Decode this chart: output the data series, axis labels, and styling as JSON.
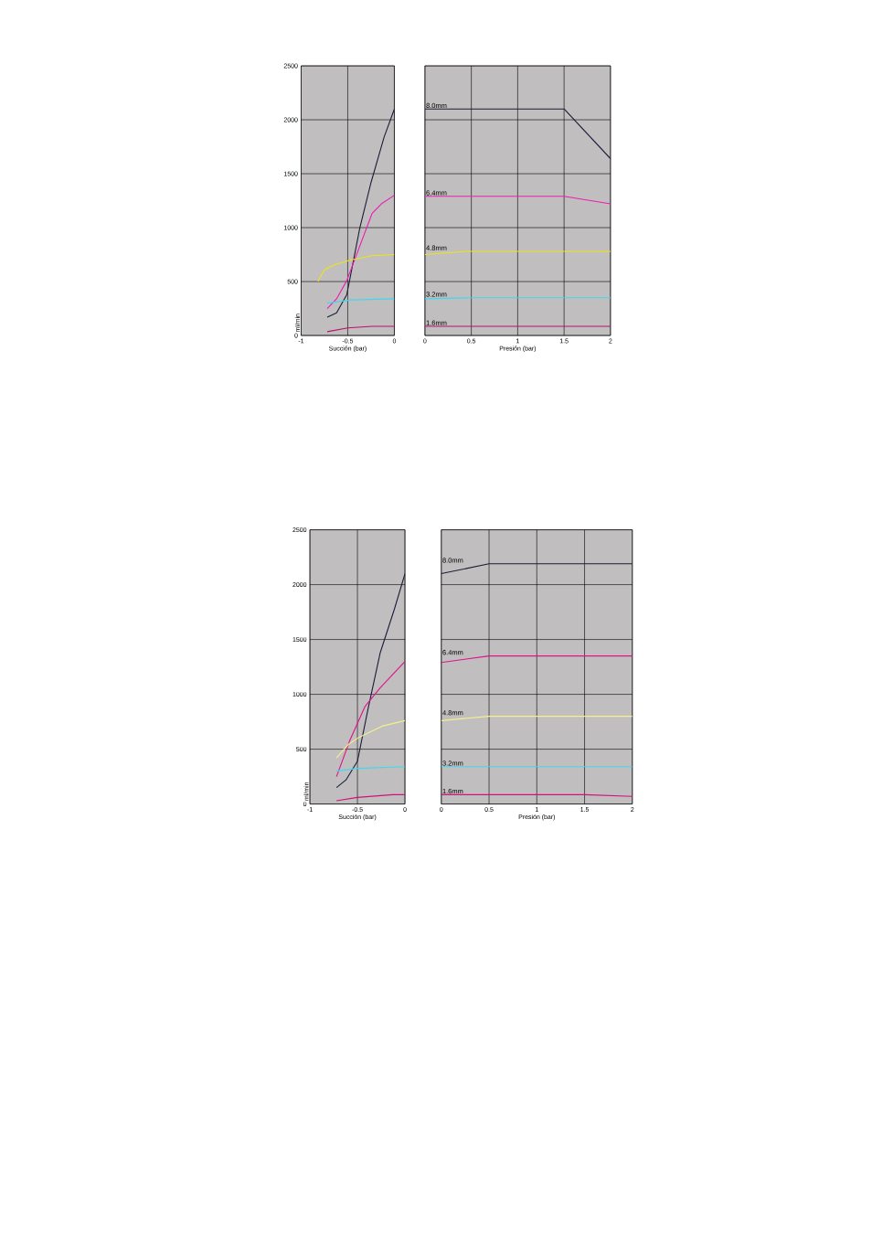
{
  "chart_data": [
    {
      "type": "line",
      "xlabel": "Succión (bar)",
      "ylabel": "ml/min",
      "xlim": [
        -1,
        0
      ],
      "ylim": [
        0,
        2500
      ],
      "xticks": [
        -1,
        -0.5,
        0
      ],
      "yticks": [
        0,
        500,
        1000,
        1500,
        2000,
        2500
      ],
      "grid": true,
      "series": [
        {
          "color": "#1c1c3a",
          "x": [
            -0.72,
            -0.62,
            -0.51,
            -0.37,
            -0.25,
            -0.11,
            0
          ],
          "values": [
            170,
            210,
            380,
            1000,
            1420,
            1840,
            2100
          ]
        },
        {
          "color": "#ee1cb4",
          "x": [
            -0.72,
            -0.62,
            -0.51,
            -0.24,
            -0.14,
            0
          ],
          "values": [
            250,
            340,
            510,
            1130,
            1220,
            1300
          ]
        },
        {
          "color": "#f0e414",
          "x": [
            -0.82,
            -0.75,
            -0.63,
            -0.47,
            -0.24,
            0
          ],
          "values": [
            500,
            610,
            660,
            700,
            740,
            750
          ]
        },
        {
          "color": "#40d8f0",
          "x": [
            -0.72,
            -0.47,
            0
          ],
          "values": [
            300,
            330,
            340
          ]
        },
        {
          "color": "#b8126a",
          "x": [
            -0.72,
            -0.5,
            -0.24,
            0
          ],
          "values": [
            35,
            70,
            85,
            85
          ]
        }
      ]
    },
    {
      "type": "line",
      "xlabel": "Presión (bar)",
      "xlim": [
        0,
        2
      ],
      "ylim": [
        0,
        2500
      ],
      "xticks": [
        0,
        0.5,
        1,
        1.5,
        2
      ],
      "yticks": [
        0,
        500,
        1000,
        1500,
        2000,
        2500
      ],
      "grid": true,
      "tick_labels": "x",
      "series": [
        {
          "name": "8.0mm",
          "color": "#1c1c3a",
          "x": [
            0,
            1.5,
            2
          ],
          "values": [
            2100,
            2100,
            1640
          ]
        },
        {
          "name": "6.4mm",
          "color": "#ee1cb4",
          "x": [
            0,
            1.5,
            2
          ],
          "values": [
            1290,
            1290,
            1220
          ]
        },
        {
          "name": "4.8mm",
          "color": "#f0e414",
          "x": [
            0,
            0.45,
            2
          ],
          "values": [
            750,
            780,
            780
          ]
        },
        {
          "name": "3.2mm",
          "color": "#40d8f0",
          "x": [
            0,
            0.5,
            2
          ],
          "values": [
            340,
            350,
            350
          ]
        },
        {
          "name": "1.6mm",
          "color": "#b8126a",
          "x": [
            0,
            2
          ],
          "values": [
            85,
            85
          ]
        }
      ]
    },
    {
      "type": "line",
      "xlabel": "Succión (bar)",
      "ylabel": "ml/min",
      "xlim": [
        -1,
        0
      ],
      "ylim": [
        0,
        2500
      ],
      "xticks": [
        -1,
        -0.5,
        0
      ],
      "yticks": [
        0,
        500,
        1000,
        1500,
        2000,
        2500
      ],
      "grid": true,
      "series": [
        {
          "color": "#1c1c3a",
          "x": [
            -0.72,
            -0.62,
            -0.5,
            -0.39,
            -0.26,
            -0.11,
            0
          ],
          "values": [
            150,
            220,
            390,
            860,
            1380,
            1780,
            2100
          ]
        },
        {
          "color": "#e0128c",
          "x": [
            -0.72,
            -0.58,
            -0.42,
            -0.26,
            0
          ],
          "values": [
            250,
            580,
            890,
            1060,
            1300
          ]
        },
        {
          "color": "#f5f08c",
          "x": [
            -0.72,
            -0.6,
            -0.48,
            -0.24,
            0
          ],
          "values": [
            420,
            540,
            610,
            710,
            760
          ]
        },
        {
          "color": "#40d8f0",
          "x": [
            -0.72,
            -0.5,
            0
          ],
          "values": [
            300,
            325,
            340
          ]
        },
        {
          "color": "#d0127c",
          "x": [
            -0.72,
            -0.5,
            -0.13,
            0
          ],
          "values": [
            30,
            60,
            85,
            85
          ]
        }
      ]
    },
    {
      "type": "line",
      "xlabel": "Presión (bar)",
      "xlim": [
        0,
        2
      ],
      "ylim": [
        0,
        2500
      ],
      "xticks": [
        0,
        0.5,
        1,
        1.5,
        2
      ],
      "yticks": [
        0,
        500,
        1000,
        1500,
        2000,
        2500
      ],
      "grid": true,
      "tick_labels": "x",
      "series": [
        {
          "name": "8.0mm",
          "color": "#1c1c3a",
          "x": [
            0,
            0.5,
            2
          ],
          "values": [
            2100,
            2190,
            2190
          ]
        },
        {
          "name": "6.4mm",
          "color": "#e0128c",
          "x": [
            0,
            0.5,
            2
          ],
          "values": [
            1290,
            1350,
            1350
          ]
        },
        {
          "name": "4.8mm",
          "color": "#f5f08c",
          "x": [
            0,
            0.5,
            2
          ],
          "values": [
            760,
            800,
            800
          ]
        },
        {
          "name": "3.2mm",
          "color": "#40d8f0",
          "x": [
            0,
            2
          ],
          "values": [
            340,
            340
          ]
        },
        {
          "name": "1.6mm",
          "color": "#d0127c",
          "x": [
            0,
            1.5,
            2
          ],
          "values": [
            85,
            85,
            70
          ]
        }
      ]
    }
  ]
}
